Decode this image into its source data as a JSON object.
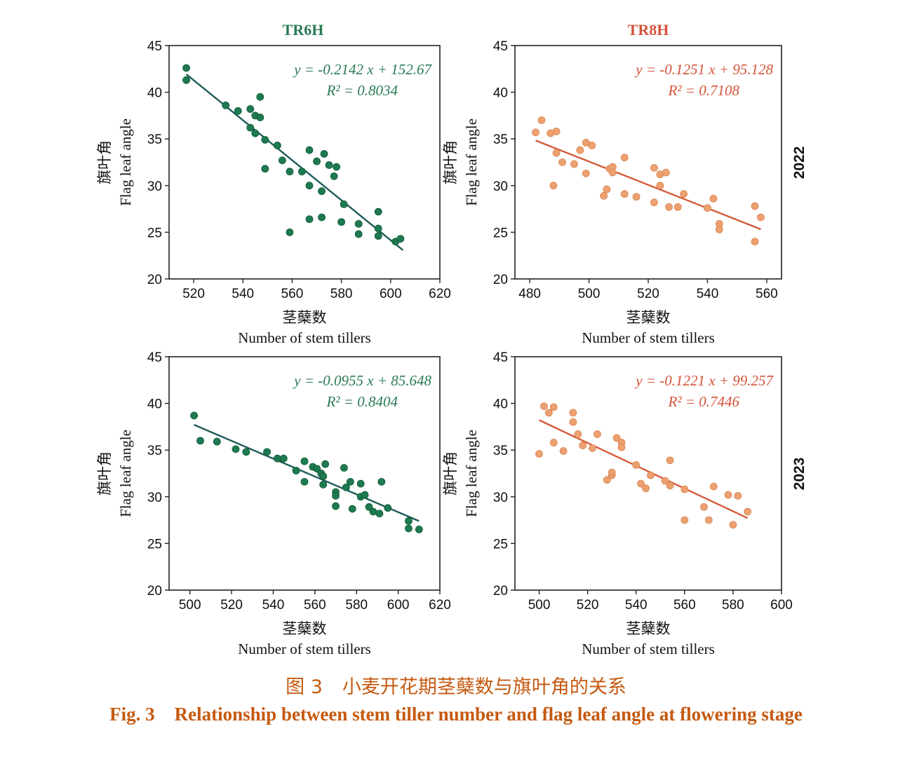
{
  "colors": {
    "green_series": "#1e7a50",
    "green_line": "#1f5c5a",
    "orange_series": "#eda070",
    "orange_line": "#d65a3a",
    "green_text": "#2a7a55",
    "orange_text": "#d4533a",
    "caption": "#c55a11"
  },
  "column_titles": [
    "TR6H",
    "TR8H"
  ],
  "row_labels": [
    "2022",
    "2023"
  ],
  "caption": {
    "cn_num": "图 3",
    "cn_text": "小麦开花期茎蘖数与旗叶角的关系",
    "en_num": "Fig. 3",
    "en_text": "Relationship between stem tiller number and flag leaf angle at flowering stage"
  },
  "chart_data": [
    {
      "type": "scatter",
      "title": "TR6H",
      "row_label": "2022",
      "xlabel_cn": "茎蘖数",
      "xlabel": "Number of stem tillers",
      "ylabel_cn": "旗叶角",
      "ylabel": "Flag leaf angle",
      "xlim": [
        510,
        620
      ],
      "ylim": [
        20,
        45
      ],
      "xticks": [
        520,
        540,
        560,
        580,
        600,
        620
      ],
      "yticks": [
        20,
        25,
        30,
        35,
        40,
        45
      ],
      "equation": "y = -0.2142 x + 152.67",
      "r2": "R² = 0.8034",
      "fit": {
        "slope": -0.2142,
        "intercept": 152.67,
        "x_range": [
          517,
          605
        ]
      },
      "color": "green",
      "points": [
        [
          517,
          42.6
        ],
        [
          517,
          41.3
        ],
        [
          533,
          38.6
        ],
        [
          538,
          38.0
        ],
        [
          543,
          38.2
        ],
        [
          545,
          37.5
        ],
        [
          547,
          37.3
        ],
        [
          547,
          39.5
        ],
        [
          543,
          36.2
        ],
        [
          545,
          35.6
        ],
        [
          549,
          34.9
        ],
        [
          554,
          34.3
        ],
        [
          556,
          32.7
        ],
        [
          549,
          31.8
        ],
        [
          559,
          31.5
        ],
        [
          564,
          31.5
        ],
        [
          567,
          33.8
        ],
        [
          570,
          32.6
        ],
        [
          573,
          33.4
        ],
        [
          575,
          32.2
        ],
        [
          578,
          32.0
        ],
        [
          577,
          31.0
        ],
        [
          567,
          30.0
        ],
        [
          572,
          29.4
        ],
        [
          581,
          28.0
        ],
        [
          567,
          26.4
        ],
        [
          572,
          26.6
        ],
        [
          580,
          26.1
        ],
        [
          587,
          25.9
        ],
        [
          587,
          24.8
        ],
        [
          559,
          25.0
        ],
        [
          595,
          27.2
        ],
        [
          595,
          25.4
        ],
        [
          595,
          24.6
        ],
        [
          602,
          24.0
        ],
        [
          604,
          24.3
        ]
      ]
    },
    {
      "type": "scatter",
      "title": "TR8H",
      "row_label": "2022",
      "xlabel_cn": "茎蘖数",
      "xlabel": "Number of stem tillers",
      "ylabel_cn": "旗叶角",
      "ylabel": "Flag leaf angle",
      "xlim": [
        475,
        565
      ],
      "ylim": [
        20,
        45
      ],
      "xticks": [
        480,
        500,
        520,
        540,
        560
      ],
      "yticks": [
        20,
        25,
        30,
        35,
        40,
        45
      ],
      "equation": "y = -0.1251 x + 95.128",
      "r2": "R² = 0.7108",
      "fit": {
        "slope": -0.1251,
        "intercept": 95.128,
        "x_range": [
          482,
          558
        ]
      },
      "color": "orange",
      "points": [
        [
          482,
          35.7
        ],
        [
          484,
          37.0
        ],
        [
          487,
          35.6
        ],
        [
          489,
          35.8
        ],
        [
          489,
          33.5
        ],
        [
          491,
          32.5
        ],
        [
          495,
          32.3
        ],
        [
          497,
          33.8
        ],
        [
          499,
          34.6
        ],
        [
          501,
          34.3
        ],
        [
          499,
          31.3
        ],
        [
          488,
          30.0
        ],
        [
          505,
          28.9
        ],
        [
          506,
          29.6
        ],
        [
          507,
          31.8
        ],
        [
          508,
          32.0
        ],
        [
          508,
          31.4
        ],
        [
          512,
          33.0
        ],
        [
          512,
          29.1
        ],
        [
          516,
          28.8
        ],
        [
          522,
          31.9
        ],
        [
          524,
          31.2
        ],
        [
          526,
          31.4
        ],
        [
          524,
          30.0
        ],
        [
          522,
          28.2
        ],
        [
          527,
          27.7
        ],
        [
          530,
          27.7
        ],
        [
          532,
          29.1
        ],
        [
          540,
          27.6
        ],
        [
          542,
          28.6
        ],
        [
          544,
          25.9
        ],
        [
          544,
          25.3
        ],
        [
          556,
          27.8
        ],
        [
          556,
          24.0
        ],
        [
          558,
          26.6
        ]
      ]
    },
    {
      "type": "scatter",
      "title": "",
      "row_label": "2023",
      "xlabel_cn": "茎蘖数",
      "xlabel": "Number of stem tillers",
      "ylabel_cn": "旗叶角",
      "ylabel": "Flag leaf angle",
      "xlim": [
        490,
        620
      ],
      "ylim": [
        20,
        45
      ],
      "xticks": [
        500,
        520,
        540,
        560,
        580,
        600,
        620
      ],
      "yticks": [
        20,
        25,
        30,
        35,
        40,
        45
      ],
      "equation": "y = -0.0955 x + 85.648",
      "r2": "R² = 0.8404",
      "fit": {
        "slope": -0.0955,
        "intercept": 85.648,
        "x_range": [
          502,
          610
        ]
      },
      "color": "green",
      "points": [
        [
          502,
          38.7
        ],
        [
          505,
          36.0
        ],
        [
          513,
          35.9
        ],
        [
          522,
          35.1
        ],
        [
          527,
          34.8
        ],
        [
          537,
          34.8
        ],
        [
          542,
          34.1
        ],
        [
          545,
          34.1
        ],
        [
          551,
          32.8
        ],
        [
          555,
          33.8
        ],
        [
          555,
          31.6
        ],
        [
          559,
          33.2
        ],
        [
          561,
          33.0
        ],
        [
          563,
          32.5
        ],
        [
          565,
          33.5
        ],
        [
          564,
          32.2
        ],
        [
          564,
          31.3
        ],
        [
          570,
          30.5
        ],
        [
          570,
          30.1
        ],
        [
          570,
          29.0
        ],
        [
          574,
          33.1
        ],
        [
          575,
          31.0
        ],
        [
          577,
          31.6
        ],
        [
          578,
          28.7
        ],
        [
          582,
          31.4
        ],
        [
          582,
          30.0
        ],
        [
          584,
          30.2
        ],
        [
          586,
          28.9
        ],
        [
          588,
          28.4
        ],
        [
          591,
          28.2
        ],
        [
          592,
          31.6
        ],
        [
          595,
          28.8
        ],
        [
          605,
          27.4
        ],
        [
          605,
          26.6
        ],
        [
          610,
          26.5
        ]
      ]
    },
    {
      "type": "scatter",
      "title": "",
      "row_label": "2023",
      "xlabel_cn": "茎蘖数",
      "xlabel": "Number of stem tillers",
      "ylabel_cn": "旗叶角",
      "ylabel": "Flag leaf angle",
      "xlim": [
        490,
        600
      ],
      "ylim": [
        20,
        45
      ],
      "xticks": [
        500,
        520,
        540,
        560,
        580,
        600
      ],
      "yticks": [
        20,
        25,
        30,
        35,
        40,
        45
      ],
      "equation": "y = -0.1221 x + 99.257",
      "r2": "R² = 0.7446",
      "fit": {
        "slope": -0.1221,
        "intercept": 99.257,
        "x_range": [
          500,
          586
        ]
      },
      "color": "orange",
      "points": [
        [
          500,
          34.6
        ],
        [
          502,
          39.7
        ],
        [
          504,
          39.0
        ],
        [
          506,
          39.6
        ],
        [
          506,
          35.8
        ],
        [
          510,
          34.9
        ],
        [
          514,
          39.0
        ],
        [
          514,
          38.0
        ],
        [
          516,
          36.7
        ],
        [
          518,
          35.5
        ],
        [
          522,
          35.2
        ],
        [
          524,
          36.7
        ],
        [
          528,
          31.8
        ],
        [
          530,
          32.3
        ],
        [
          530,
          32.6
        ],
        [
          532,
          36.3
        ],
        [
          534,
          35.8
        ],
        [
          534,
          35.3
        ],
        [
          540,
          33.4
        ],
        [
          542,
          31.4
        ],
        [
          544,
          30.9
        ],
        [
          546,
          32.3
        ],
        [
          552,
          31.7
        ],
        [
          554,
          31.2
        ],
        [
          554,
          33.9
        ],
        [
          560,
          30.8
        ],
        [
          560,
          27.5
        ],
        [
          568,
          28.9
        ],
        [
          570,
          27.5
        ],
        [
          572,
          31.1
        ],
        [
          578,
          30.2
        ],
        [
          580,
          27.0
        ],
        [
          582,
          30.1
        ],
        [
          586,
          28.4
        ]
      ]
    }
  ]
}
